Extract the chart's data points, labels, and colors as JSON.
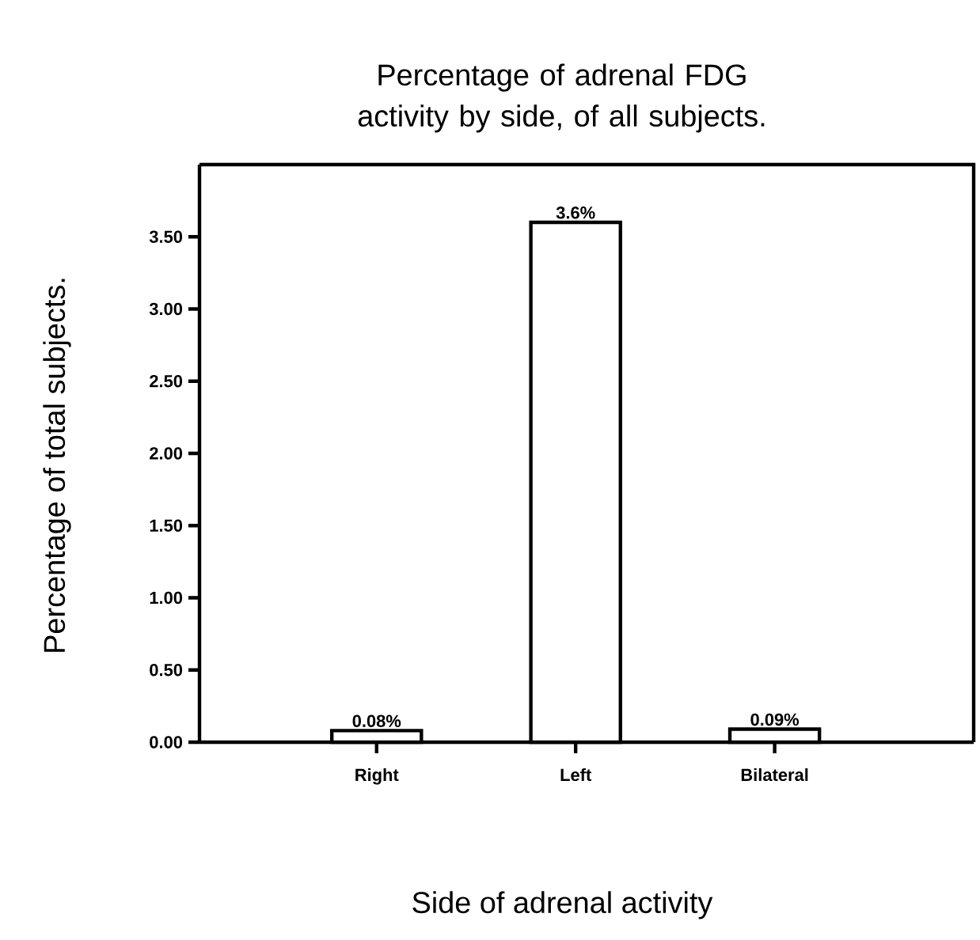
{
  "chart_data": {
    "type": "bar",
    "title": "Percentage of adrenal FDG activity by side, of all subjects.",
    "xlabel": "Side of adrenal activity",
    "ylabel": "Percentage of total subjects.",
    "categories": [
      "Right",
      "Left",
      "Bilateral"
    ],
    "values": [
      0.08,
      3.6,
      0.09
    ],
    "value_labels": [
      "0.08%",
      "3.6%",
      "0.09%"
    ],
    "color": "#ffffff",
    "ylim": [
      0,
      4.0
    ],
    "yticks": [
      {
        "value": 0,
        "label": "0.00"
      },
      {
        "value": 0.5,
        "label": "0.50"
      },
      {
        "value": 1,
        "label": "1.00"
      },
      {
        "value": 1.5,
        "label": "1.50"
      },
      {
        "value": 2,
        "label": "2.00"
      },
      {
        "value": 2.5,
        "label": "2.50"
      },
      {
        "value": 3,
        "label": "3.00"
      },
      {
        "value": 3.5,
        "label": "3.50"
      }
    ],
    "grid": false
  }
}
